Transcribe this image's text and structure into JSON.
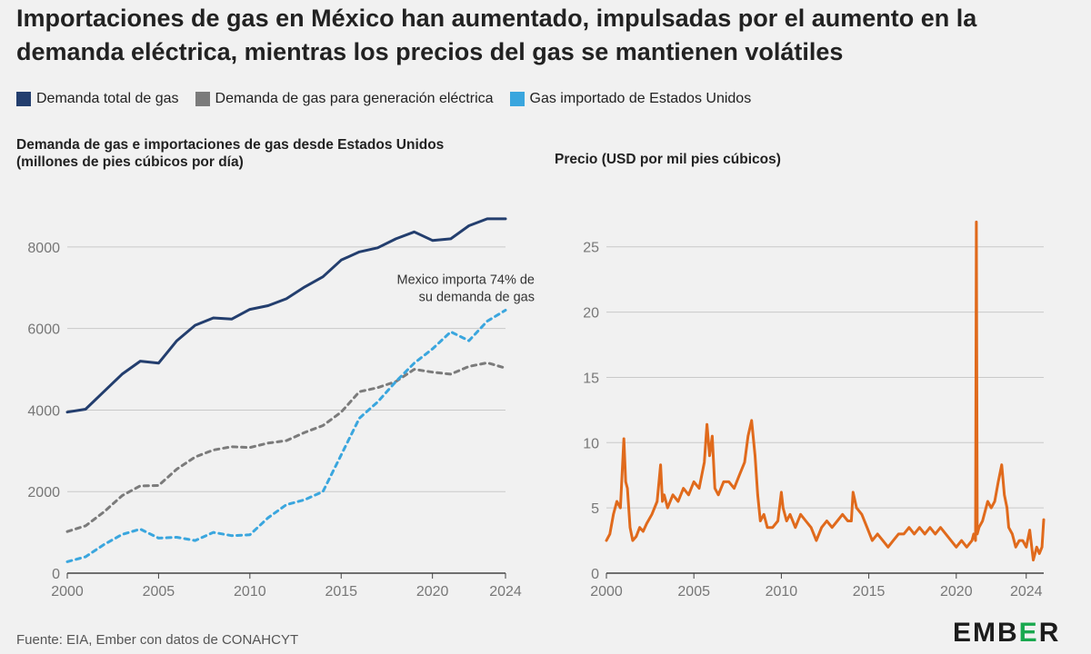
{
  "title": "Importaciones de gas en México han aumentado, impulsadas por el aumento en la demanda eléctrica, mientras los precios del gas se mantienen volátiles",
  "legend": [
    {
      "label": "Demanda total de gas",
      "color": "#233e6e"
    },
    {
      "label": "Demanda de gas para generación eléctrica",
      "color": "#7b7b7b"
    },
    {
      "label": "Gas importado de Estados Unidos",
      "color": "#3aa6de"
    }
  ],
  "source": "Fuente: EIA, Ember con datos de CONAHCYT",
  "logo": "EMBER",
  "chart_data": [
    {
      "type": "line",
      "title": "Demanda de gas e importaciones de gas desde Estados Unidos",
      "ylabel": "(millones de pies cúbicos por día)",
      "xlim": [
        2000,
        2024
      ],
      "ylim": [
        0,
        9000
      ],
      "xticks": [
        2000,
        2005,
        2010,
        2015,
        2020,
        2024
      ],
      "yticks": [
        0,
        2000,
        4000,
        6000,
        8000
      ],
      "grid": true,
      "annotation": {
        "text": "Mexico importa 74% de su demanda de gas",
        "lines": [
          "Mexico importa 74% de",
          "su demanda de gas"
        ],
        "x": 2024,
        "y": 7100
      },
      "x": [
        2000,
        2001,
        2002,
        2003,
        2004,
        2005,
        2006,
        2007,
        2008,
        2009,
        2010,
        2011,
        2012,
        2013,
        2014,
        2015,
        2016,
        2017,
        2018,
        2019,
        2020,
        2021,
        2022,
        2023,
        2024
      ],
      "series": [
        {
          "name": "Demanda total de gas",
          "color": "#233e6e",
          "dash": false,
          "values": [
            3950,
            4020,
            4450,
            4880,
            5200,
            5150,
            5700,
            6080,
            6260,
            6230,
            6470,
            6560,
            6730,
            7020,
            7270,
            7680,
            7880,
            7980,
            8200,
            8370,
            8160,
            8200,
            8520,
            8690,
            8690
          ]
        },
        {
          "name": "Demanda de gas para generación eléctrica",
          "color": "#7b7b7b",
          "dash": true,
          "values": [
            1020,
            1160,
            1500,
            1900,
            2140,
            2150,
            2550,
            2850,
            3020,
            3100,
            3080,
            3190,
            3250,
            3450,
            3620,
            3950,
            4450,
            4550,
            4700,
            5000,
            4930,
            4880,
            5070,
            5160,
            5030
          ]
        },
        {
          "name": "Gas importado de Estados Unidos",
          "color": "#3aa6de",
          "dash": true,
          "values": [
            280,
            400,
            700,
            950,
            1080,
            860,
            880,
            800,
            1000,
            920,
            940,
            1360,
            1680,
            1800,
            2000,
            2900,
            3800,
            4200,
            4700,
            5150,
            5500,
            5920,
            5700,
            6180,
            6450
          ]
        }
      ]
    },
    {
      "type": "line",
      "title": "Precio (USD por mil pies cúbicos)",
      "xlim": [
        2000,
        2025
      ],
      "ylim": [
        0,
        27
      ],
      "xticks": [
        2000,
        2005,
        2010,
        2015,
        2020,
        2024
      ],
      "yticks": [
        0,
        5,
        10,
        15,
        20,
        25
      ],
      "grid": true,
      "series": [
        {
          "name": "Precio",
          "color": "#e06a1c",
          "x": [
            2000,
            2000.2,
            2000.4,
            2000.6,
            2000.8,
            2001.0,
            2001.1,
            2001.2,
            2001.35,
            2001.5,
            2001.7,
            2001.9,
            2002.1,
            2002.3,
            2002.6,
            2002.9,
            2003.1,
            2003.2,
            2003.3,
            2003.5,
            2003.8,
            2004.1,
            2004.4,
            2004.7,
            2005.0,
            2005.3,
            2005.6,
            2005.75,
            2005.9,
            2006.05,
            2006.2,
            2006.4,
            2006.7,
            2007.0,
            2007.3,
            2007.6,
            2007.9,
            2008.1,
            2008.3,
            2008.5,
            2008.65,
            2008.8,
            2009.0,
            2009.2,
            2009.5,
            2009.8,
            2010.0,
            2010.1,
            2010.3,
            2010.5,
            2010.8,
            2011.1,
            2011.4,
            2011.7,
            2012.0,
            2012.3,
            2012.6,
            2012.9,
            2013.2,
            2013.5,
            2013.8,
            2014.0,
            2014.1,
            2014.3,
            2014.6,
            2014.9,
            2015.2,
            2015.5,
            2015.8,
            2016.1,
            2016.4,
            2016.7,
            2017.0,
            2017.3,
            2017.6,
            2017.9,
            2018.2,
            2018.5,
            2018.8,
            2019.1,
            2019.4,
            2019.7,
            2020.0,
            2020.3,
            2020.6,
            2020.9,
            2021.0,
            2021.1,
            2021.15,
            2021.2,
            2021.3,
            2021.5,
            2021.8,
            2022.0,
            2022.2,
            2022.4,
            2022.6,
            2022.75,
            2022.9,
            2023.0,
            2023.2,
            2023.4,
            2023.6,
            2023.8,
            2024.0,
            2024.2,
            2024.4,
            2024.6,
            2024.75,
            2024.9,
            2025.0
          ],
          "values": [
            2.5,
            3.0,
            4.5,
            5.5,
            5.0,
            10.3,
            7.0,
            6.5,
            3.5,
            2.5,
            2.8,
            3.5,
            3.2,
            3.8,
            4.5,
            5.5,
            8.3,
            5.5,
            6.0,
            5.0,
            6.0,
            5.5,
            6.5,
            6.0,
            7.0,
            6.5,
            8.5,
            11.4,
            9.0,
            10.5,
            6.5,
            6.0,
            7.0,
            7.0,
            6.5,
            7.5,
            8.5,
            10.5,
            11.7,
            9.0,
            6.0,
            4.0,
            4.5,
            3.5,
            3.5,
            4.0,
            6.2,
            5.0,
            4.0,
            4.5,
            3.5,
            4.5,
            4.0,
            3.5,
            2.5,
            3.5,
            4.0,
            3.5,
            4.0,
            4.5,
            4.0,
            4.0,
            6.2,
            5.0,
            4.5,
            3.5,
            2.5,
            3.0,
            2.5,
            2.0,
            2.5,
            3.0,
            3.0,
            3.5,
            3.0,
            3.5,
            3.0,
            3.5,
            3.0,
            3.5,
            3.0,
            2.5,
            2.0,
            2.5,
            2.0,
            2.5,
            3.0,
            2.5,
            26.9,
            3.0,
            3.5,
            4.0,
            5.5,
            5.0,
            5.5,
            7.0,
            8.3,
            6.0,
            5.0,
            3.5,
            3.0,
            2.0,
            2.5,
            2.5,
            2.0,
            3.3,
            1.0,
            2.0,
            1.5,
            2.0,
            4.1
          ]
        }
      ]
    }
  ]
}
